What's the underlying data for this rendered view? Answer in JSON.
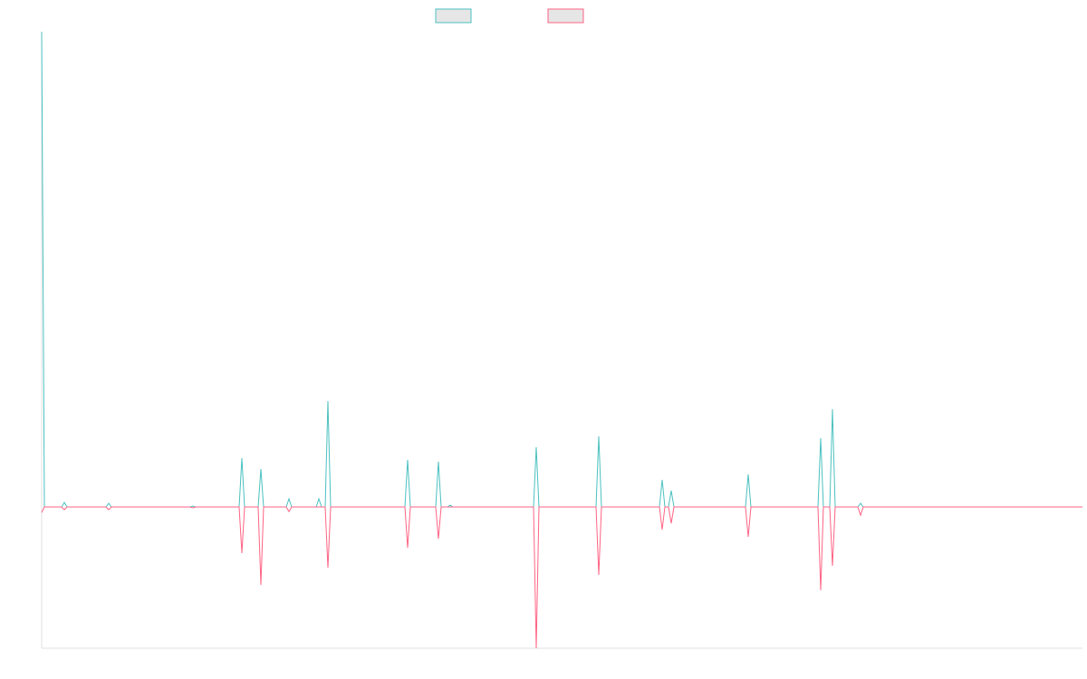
{
  "chart_data": {
    "type": "line",
    "x": [
      0,
      3,
      22,
      25,
      28,
      71,
      74,
      77,
      164,
      167,
      170,
      218,
      221,
      224,
      239,
      242,
      245,
      270,
      273,
      276,
      303,
      306,
      309,
      313,
      316,
      319,
      401,
      404,
      407,
      435,
      438,
      441,
      448,
      451,
      454,
      543,
      546,
      549,
      612,
      615,
      618,
      682,
      685,
      688,
      692,
      695,
      698,
      777,
      780,
      783,
      857,
      860,
      863,
      870,
      873,
      876,
      901,
      904,
      907,
      1149
    ],
    "xlim": [
      0,
      1149
    ],
    "ylim": [
      -156,
      525
    ],
    "series": [
      {
        "color": "#4bc0c0",
        "values": [
          525,
          0,
          0,
          5,
          0,
          0,
          4,
          0,
          0,
          1,
          0,
          0,
          54,
          0,
          0,
          42,
          0,
          0,
          9,
          0,
          0,
          9,
          0,
          0,
          117,
          0,
          0,
          52,
          0,
          0,
          50,
          0,
          0,
          2,
          0,
          0,
          66,
          0,
          0,
          78,
          0,
          0,
          30,
          0,
          0,
          18,
          0,
          0,
          36,
          0,
          0,
          76,
          0,
          0,
          108,
          0,
          0,
          4,
          0,
          0
        ]
      },
      {
        "color": "#ff6384",
        "values": [
          -6,
          0,
          0,
          -3,
          0,
          0,
          -3,
          0,
          0,
          -1,
          0,
          0,
          -51,
          0,
          0,
          -86,
          0,
          0,
          -5,
          0,
          0,
          0,
          0,
          0,
          -67,
          0,
          0,
          -45,
          0,
          0,
          -35,
          0,
          0,
          0,
          0,
          0,
          -156,
          0,
          0,
          -75,
          0,
          0,
          -25,
          0,
          0,
          -18,
          0,
          0,
          -33,
          0,
          0,
          -92,
          0,
          0,
          -65,
          0,
          0,
          -9,
          0,
          0
        ]
      }
    ]
  }
}
